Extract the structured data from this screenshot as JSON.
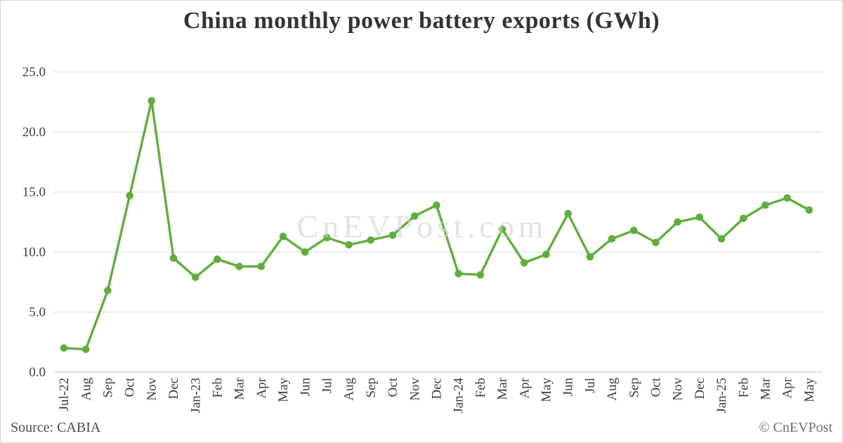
{
  "chart_data": {
    "type": "line",
    "title": "China monthly power battery exports (GWh)",
    "series_name": "China monthly power battery exports (GWh)",
    "categories": [
      "Jul-22",
      "Aug",
      "Sep",
      "Oct",
      "Nov",
      "Dec",
      "Jan-23",
      "Feb",
      "Mar",
      "Apr",
      "May",
      "Jun",
      "Jul",
      "Aug",
      "Sep",
      "Oct",
      "Nov",
      "Dec",
      "Jan-24",
      "Feb",
      "Mar",
      "Apr",
      "May",
      "Jun",
      "Jul",
      "Aug",
      "Sep",
      "Oct",
      "Nov",
      "Dec",
      "Jan-25",
      "Feb",
      "Mar",
      "Apr",
      "May"
    ],
    "values": [
      2.0,
      1.9,
      6.8,
      14.7,
      22.6,
      9.5,
      7.9,
      9.4,
      8.8,
      8.8,
      11.3,
      10.0,
      11.2,
      10.6,
      11.0,
      11.4,
      13.0,
      13.9,
      8.2,
      8.1,
      11.9,
      9.1,
      9.8,
      13.2,
      9.6,
      11.1,
      11.8,
      10.8,
      12.5,
      12.9,
      11.1,
      12.8,
      13.9,
      14.5,
      13.5
    ],
    "xlabel": "",
    "ylabel": "",
    "ylim": [
      0,
      25
    ],
    "yticks": [
      0,
      5,
      10,
      15,
      20,
      25
    ],
    "ytick_labels": [
      "0.0",
      "5.0",
      "10.0",
      "15.0",
      "20.0",
      "25.0"
    ],
    "grid": "horizontal",
    "legend": "none",
    "line_color": "#5fae3c",
    "marker_color": "#5fae3c",
    "gridline_color": "#d9d9d9",
    "axis_line_color": "#c3c3c3",
    "tick_label_color": "#3d3d3d",
    "watermark": "CnEVPost.com",
    "watermark_color": "#d2d2d2"
  },
  "footer": {
    "source": "Source: CABIA",
    "copyright": "© CnEVPost"
  }
}
